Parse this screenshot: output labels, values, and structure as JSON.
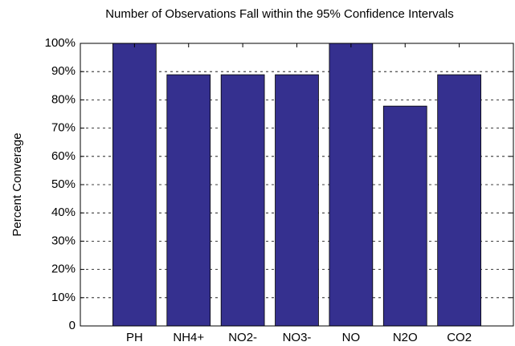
{
  "chart_data": {
    "type": "bar",
    "title": "Number of Observations Fall within the 95% Confidence Intervals",
    "y_label": "Percent Converage",
    "categories": [
      "PH",
      "NH4+",
      "NO2-",
      "NO3-",
      "NO",
      "N2O",
      "CO2"
    ],
    "values": [
      100,
      88.9,
      88.9,
      88.9,
      100,
      77.8,
      88.9
    ],
    "color": "#35308f",
    "ylim": [
      0,
      100
    ],
    "yticks": [
      0,
      {
        "value": 10,
        "label": "10%"
      },
      {
        "value": 20,
        "label": "20%"
      },
      {
        "value": 30,
        "label": "30%"
      },
      {
        "value": 40,
        "label": "40%"
      },
      {
        "value": 50,
        "label": "50%"
      },
      {
        "value": 60,
        "label": "60%"
      },
      {
        "value": 70,
        "label": "70%"
      },
      {
        "value": 80,
        "label": "80%"
      },
      {
        "value": 90,
        "label": "90%"
      },
      {
        "value": 100,
        "label": "100%"
      }
    ],
    "grid": true
  }
}
